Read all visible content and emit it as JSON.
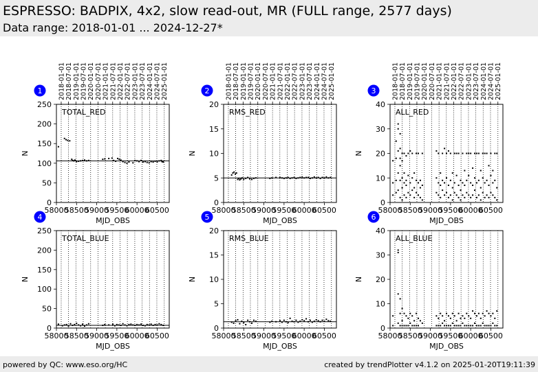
{
  "header": {
    "title": "ESPRESSO: BADPIX, 4x2, slow read-out, MR (FULL range, 2577 days)",
    "subtitle": "Data range: 2018-01-01 ... 2024-12-27*"
  },
  "footer": {
    "left": "powered by QC: www.eso.org/HC",
    "right": "created by trendPlotter v4.1.2 on 2025-01-20T19:11:39"
  },
  "colors": {
    "marker": "#0000ff",
    "points": "#000000",
    "header_bg": "#ececec"
  },
  "chart_data": [
    {
      "type": "scatter",
      "id": 1,
      "label": "TOTAL_RED",
      "xlabel": "MJD_OBS",
      "ylabel": "N",
      "xlim": [
        58000,
        60800
      ],
      "ylim": [
        0,
        250
      ],
      "yticks": [
        0,
        50,
        100,
        150,
        200,
        250
      ],
      "xticks": [
        58000,
        58500,
        59000,
        59500,
        60000,
        60500
      ],
      "date_ticks": [
        "2018-01-01",
        "2018-07-01",
        "2019-01-01",
        "2019-07-01",
        "2020-01-01",
        "2020-07-01",
        "2021-01-01",
        "2021-07-01",
        "2022-01-01",
        "2022-07-01",
        "2023-01-01",
        "2023-07-01",
        "2024-01-01",
        "2024-07-01",
        "2025-01-01"
      ],
      "reference": 106,
      "x": [
        58050,
        58200,
        58240,
        58280,
        58330,
        58380,
        58400,
        58430,
        58460,
        58500,
        58550,
        58600,
        58650,
        58700,
        58750,
        58800,
        59150,
        59200,
        59300,
        59380,
        59420,
        59470,
        59520,
        59560,
        59600,
        59650,
        59700,
        59750,
        59800,
        59900,
        59950,
        60000,
        60050,
        60100,
        60150,
        60200,
        60250,
        60300,
        60350,
        60400,
        60450,
        60500,
        60550,
        60600,
        60620,
        60650
      ],
      "y": [
        142,
        163,
        160,
        158,
        157,
        110,
        107,
        106,
        108,
        104,
        105,
        106,
        107,
        108,
        106,
        107,
        110,
        111,
        112,
        113,
        107,
        105,
        112,
        110,
        108,
        104,
        102,
        100,
        103,
        101,
        107,
        106,
        104,
        107,
        103,
        104,
        102,
        101,
        104,
        103,
        105,
        103,
        106,
        107,
        104,
        103
      ]
    },
    {
      "type": "scatter",
      "id": 2,
      "label": "RMS_RED",
      "xlabel": "MJD_OBS",
      "ylabel": "N",
      "xlim": [
        58000,
        60800
      ],
      "ylim": [
        0,
        20
      ],
      "yticks": [
        0,
        5,
        10,
        15,
        20
      ],
      "xticks": [
        58000,
        58500,
        59000,
        59500,
        60000,
        60500
      ],
      "date_ticks": [
        "2018-01-01",
        "2018-07-01",
        "2019-01-01",
        "2019-07-01",
        "2020-01-01",
        "2020-07-01",
        "2021-01-01",
        "2021-07-01",
        "2022-01-01",
        "2022-07-01",
        "2023-01-01",
        "2023-07-01",
        "2024-01-01",
        "2024-07-01",
        "2025-01-01"
      ],
      "reference": 5.0,
      "x": [
        58200,
        58230,
        58260,
        58290,
        58320,
        58350,
        58380,
        58400,
        58430,
        58460,
        58500,
        58550,
        58600,
        58650,
        58700,
        58750,
        58800,
        59150,
        59200,
        59300,
        59400,
        59450,
        59500,
        59550,
        59600,
        59650,
        59700,
        59750,
        59800,
        59850,
        59900,
        59950,
        60000,
        60050,
        60100,
        60150,
        60200,
        60250,
        60300,
        60350,
        60400,
        60450,
        60500,
        60550,
        60600,
        60650
      ],
      "y": [
        5.6,
        6.0,
        6.2,
        5.8,
        6.0,
        4.7,
        4.9,
        4.6,
        4.8,
        5.0,
        4.7,
        4.9,
        5.1,
        4.8,
        4.7,
        4.9,
        5.0,
        4.9,
        5.0,
        5.1,
        5.1,
        5.0,
        4.9,
        5.0,
        5.1,
        4.9,
        5.0,
        5.1,
        4.9,
        5.0,
        5.1,
        5.2,
        5.0,
        5.1,
        5.1,
        4.9,
        5.0,
        5.2,
        5.0,
        5.1,
        4.9,
        5.1,
        5.0,
        5.2,
        5.0,
        5.1
      ]
    },
    {
      "type": "scatter",
      "id": 3,
      "label": "ALL_RED",
      "xlabel": "MJD_OBS",
      "ylabel": "N",
      "xlim": [
        58000,
        60800
      ],
      "ylim": [
        0,
        40
      ],
      "yticks": [
        0,
        10,
        20,
        30,
        40
      ],
      "xticks": [
        58000,
        58500,
        59000,
        59500,
        60000,
        60500
      ],
      "date_ticks": [
        "2018-01-01",
        "2018-07-01",
        "2019-01-01",
        "2019-07-01",
        "2020-01-01",
        "2020-07-01",
        "2021-01-01",
        "2021-07-01",
        "2022-01-01",
        "2022-07-01",
        "2023-01-01",
        "2023-07-01",
        "2024-01-01",
        "2024-07-01",
        "2025-01-01"
      ],
      "reference": null,
      "x": [
        58070,
        58070,
        58070,
        58150,
        58150,
        58150,
        58150,
        58200,
        58200,
        58200,
        58200,
        58200,
        58250,
        58250,
        58250,
        58250,
        58250,
        58250,
        58300,
        58300,
        58300,
        58300,
        58300,
        58350,
        58350,
        58350,
        58350,
        58400,
        58400,
        58400,
        58400,
        58450,
        58450,
        58450,
        58500,
        58500,
        58500,
        58550,
        58550,
        58550,
        58600,
        58600,
        58600,
        58650,
        58650,
        58650,
        58700,
        58700,
        58700,
        58750,
        58750,
        58750,
        58800,
        58800,
        58800,
        59150,
        59150,
        59150,
        59200,
        59200,
        59200,
        59250,
        59250,
        59250,
        59300,
        59300,
        59300,
        59350,
        59350,
        59350,
        59400,
        59400,
        59400,
        59450,
        59450,
        59450,
        59500,
        59500,
        59500,
        59550,
        59550,
        59550,
        59600,
        59600,
        59600,
        59650,
        59650,
        59650,
        59700,
        59700,
        59700,
        59750,
        59750,
        59750,
        59800,
        59800,
        59800,
        59850,
        59850,
        59850,
        59900,
        59900,
        59900,
        59950,
        59950,
        59950,
        60000,
        60000,
        60000,
        60050,
        60050,
        60050,
        60100,
        60100,
        60100,
        60150,
        60150,
        60150,
        60200,
        60200,
        60200,
        60250,
        60250,
        60250,
        60300,
        60300,
        60300,
        60350,
        60350,
        60350,
        60400,
        60400,
        60400,
        60450,
        60450,
        60450,
        60500,
        60500,
        60500,
        60550,
        60550,
        60550,
        60600,
        60600,
        60600,
        60650,
        60650,
        60650
      ],
      "y": [
        17,
        8,
        3,
        25,
        18,
        9,
        4,
        32,
        30,
        21,
        12,
        5,
        28,
        22,
        18,
        15,
        9,
        2,
        20,
        17,
        10,
        6,
        1,
        20,
        12,
        8,
        3,
        19,
        9,
        7,
        2,
        20,
        11,
        4,
        21,
        8,
        3,
        20,
        10,
        5,
        12,
        6,
        2,
        20,
        9,
        4,
        20,
        8,
        3,
        9,
        6,
        2,
        20,
        7,
        1,
        21,
        10,
        4,
        20,
        8,
        3,
        12,
        7,
        2,
        20,
        9,
        5,
        22,
        8,
        3,
        20,
        10,
        4,
        21,
        7,
        2,
        20,
        9,
        3,
        12,
        6,
        1,
        20,
        8,
        4,
        20,
        11,
        3,
        20,
        7,
        2,
        9,
        5,
        1,
        20,
        8,
        3,
        13,
        7,
        2,
        20,
        9,
        4,
        20,
        11,
        3,
        20,
        8,
        2,
        14,
        7,
        3,
        20,
        10,
        5,
        20,
        8,
        2,
        20,
        9,
        3,
        13,
        6,
        1,
        20,
        10,
        4,
        20,
        8,
        2,
        20,
        9,
        3,
        15,
        7,
        2,
        20,
        11,
        4,
        13,
        8,
        3,
        20,
        9,
        2,
        20,
        6,
        1
      ]
    },
    {
      "type": "scatter",
      "id": 4,
      "label": "TOTAL_BLUE",
      "xlabel": "MJD_OBS",
      "ylabel": "N",
      "xlim": [
        58000,
        60800
      ],
      "ylim": [
        0,
        250
      ],
      "yticks": [
        0,
        50,
        100,
        150,
        200,
        250
      ],
      "xticks": [
        58000,
        58500,
        59000,
        59500,
        60000,
        60500
      ],
      "reference": 7,
      "x": [
        58050,
        58150,
        58200,
        58250,
        58300,
        58350,
        58400,
        58450,
        58500,
        58550,
        58600,
        58650,
        58700,
        58750,
        58800,
        59150,
        59200,
        59300,
        59400,
        59450,
        59500,
        59550,
        59600,
        59650,
        59700,
        59750,
        59800,
        59850,
        59900,
        59950,
        60000,
        60050,
        60100,
        60150,
        60200,
        60250,
        60300,
        60350,
        60400,
        60450,
        60500,
        60550,
        60600,
        60650
      ],
      "y": [
        10,
        6,
        8,
        9,
        5,
        11,
        7,
        9,
        12,
        8,
        6,
        10,
        5,
        8,
        11,
        7,
        9,
        8,
        10,
        6,
        9,
        8,
        7,
        11,
        8,
        6,
        9,
        10,
        8,
        7,
        9,
        8,
        10,
        7,
        6,
        9,
        8,
        10,
        7,
        9,
        8,
        11,
        9,
        7
      ]
    },
    {
      "type": "scatter",
      "id": 5,
      "label": "RMS_BLUE",
      "xlabel": "MJD_OBS",
      "ylabel": "N",
      "xlim": [
        58000,
        60800
      ],
      "ylim": [
        0,
        20
      ],
      "yticks": [
        0,
        5,
        10,
        15,
        20
      ],
      "xticks": [
        58000,
        58500,
        59000,
        59500,
        60000,
        60500
      ],
      "reference": 1.3,
      "x": [
        58200,
        58250,
        58300,
        58350,
        58400,
        58450,
        58500,
        58550,
        58600,
        58650,
        58700,
        58750,
        58800,
        59150,
        59200,
        59300,
        59400,
        59450,
        59500,
        59550,
        59600,
        59650,
        59700,
        59750,
        59800,
        59850,
        59900,
        59950,
        60000,
        60050,
        60100,
        60150,
        60200,
        60250,
        60300,
        60350,
        60400,
        60450,
        60500,
        60550,
        60600,
        60650
      ],
      "y": [
        1.2,
        1.0,
        1.5,
        1.7,
        0.9,
        1.4,
        1.1,
        0.7,
        1.6,
        1.3,
        1.0,
        1.6,
        1.4,
        1.2,
        1.4,
        1.3,
        1.5,
        1.2,
        1.6,
        1.3,
        1.1,
        2.0,
        1.4,
        1.3,
        1.6,
        1.2,
        1.4,
        1.7,
        1.5,
        1.9,
        1.3,
        1.6,
        1.2,
        1.4,
        1.7,
        1.5,
        1.3,
        1.6,
        1.4,
        1.8,
        1.5,
        1.4
      ]
    },
    {
      "type": "scatter",
      "id": 6,
      "label": "ALL_BLUE",
      "xlabel": "MJD_OBS",
      "ylabel": "N",
      "xlim": [
        58000,
        60800
      ],
      "ylim": [
        0,
        40
      ],
      "yticks": [
        0,
        10,
        20,
        30,
        40
      ],
      "xticks": [
        58000,
        58500,
        59000,
        59500,
        60000,
        60500
      ],
      "reference": null,
      "x": [
        58070,
        58070,
        58200,
        58200,
        58200,
        58200,
        58250,
        58250,
        58250,
        58300,
        58300,
        58300,
        58350,
        58350,
        58400,
        58400,
        58450,
        58450,
        58500,
        58500,
        58550,
        58550,
        58600,
        58600,
        58650,
        58650,
        58700,
        58700,
        58750,
        58800,
        59150,
        59150,
        59200,
        59200,
        59250,
        59250,
        59300,
        59300,
        59350,
        59350,
        59400,
        59400,
        59450,
        59450,
        59500,
        59500,
        59550,
        59550,
        59600,
        59600,
        59650,
        59650,
        59700,
        59700,
        59750,
        59750,
        59800,
        59800,
        59850,
        59850,
        59900,
        59900,
        59950,
        59950,
        60000,
        60000,
        60050,
        60050,
        60100,
        60100,
        60150,
        60150,
        60200,
        60200,
        60250,
        60250,
        60300,
        60300,
        60350,
        60350,
        60400,
        60400,
        60450,
        60450,
        60500,
        60500,
        60550,
        60550,
        60600,
        60600,
        60650,
        60650
      ],
      "y": [
        5,
        1,
        32,
        31,
        14,
        2,
        12,
        6,
        1,
        8,
        3,
        1,
        6,
        1,
        5,
        1,
        4,
        1,
        6,
        2,
        5,
        1,
        3,
        1,
        6,
        1,
        4,
        1,
        3,
        2,
        5,
        1,
        4,
        1,
        6,
        1,
        5,
        2,
        3,
        1,
        6,
        1,
        5,
        1,
        4,
        1,
        6,
        2,
        5,
        1,
        3,
        1,
        6,
        1,
        4,
        1,
        5,
        2,
        4,
        1,
        6,
        1,
        5,
        1,
        4,
        1,
        7,
        1,
        6,
        2,
        5,
        1,
        6,
        1,
        4,
        1,
        6,
        2,
        5,
        1,
        7,
        1,
        6,
        1,
        5,
        1,
        6,
        2,
        4,
        1,
        7,
        1
      ]
    }
  ]
}
